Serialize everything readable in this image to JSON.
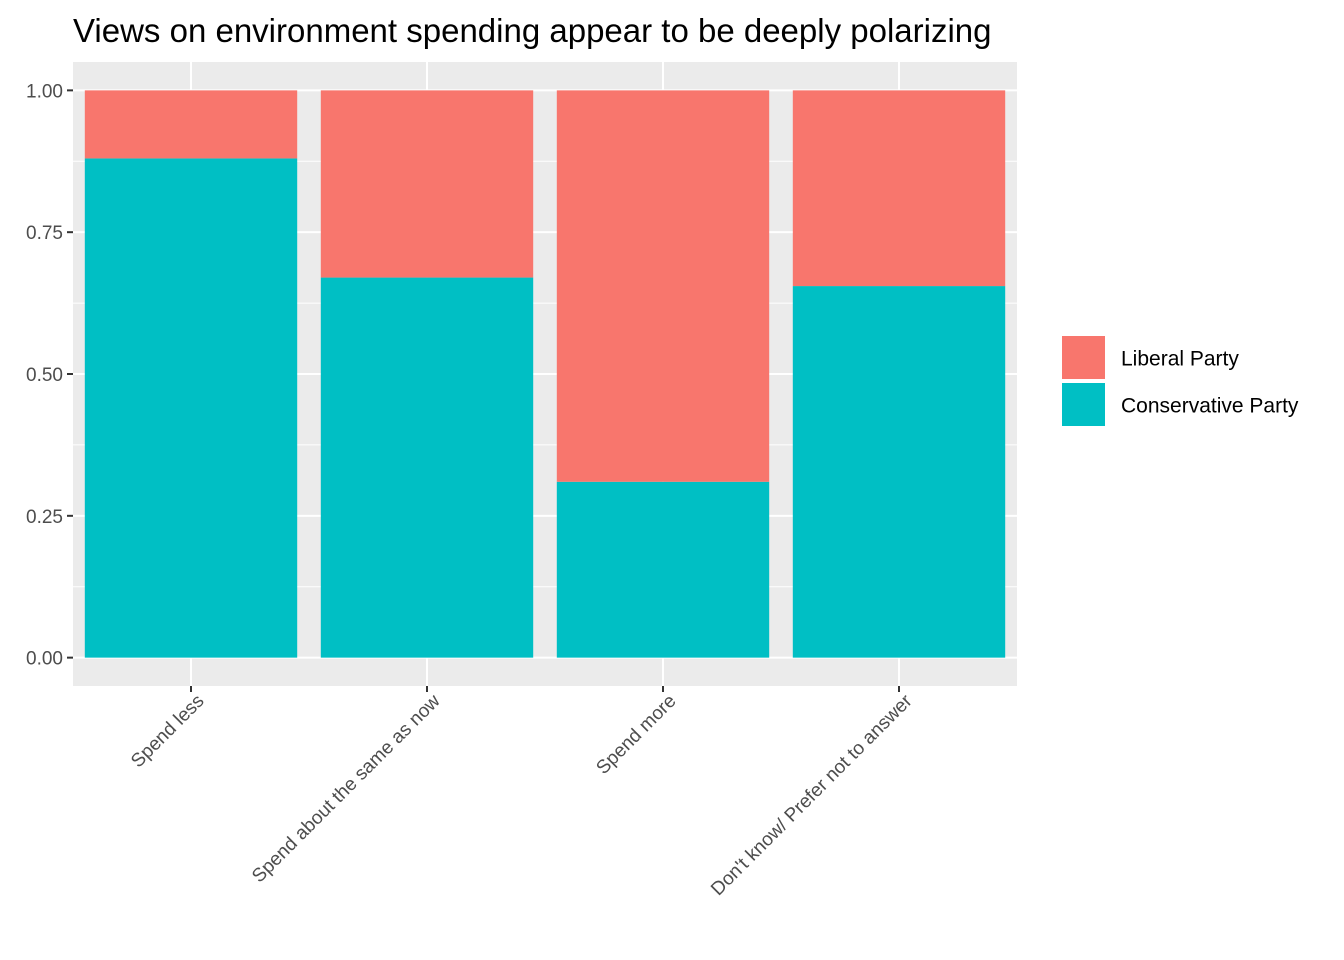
{
  "chart_data": {
    "type": "bar",
    "stacked": true,
    "title": "Views on environment spending appear to be deeply polarizing",
    "xlabel": "",
    "ylabel": "",
    "categories": [
      "Spend less",
      "Spend about the same as now",
      "Spend more",
      "Don't know/ Prefer not to answer"
    ],
    "series": [
      {
        "name": "Conservative Party",
        "color": "#00BFC4",
        "values": [
          0.88,
          0.67,
          0.31,
          0.655
        ]
      },
      {
        "name": "Liberal Party",
        "color": "#F8766D",
        "values": [
          0.12,
          0.33,
          0.69,
          0.345
        ]
      }
    ],
    "ylim": [
      -0.05,
      1.05
    ],
    "yticks": [
      "0.00",
      "0.25",
      "0.50",
      "0.75",
      "1.00"
    ],
    "legend_order": [
      "Liberal Party",
      "Conservative Party"
    ],
    "legend_position": "right",
    "grid": true,
    "panel_background": "#EBEBEB"
  }
}
